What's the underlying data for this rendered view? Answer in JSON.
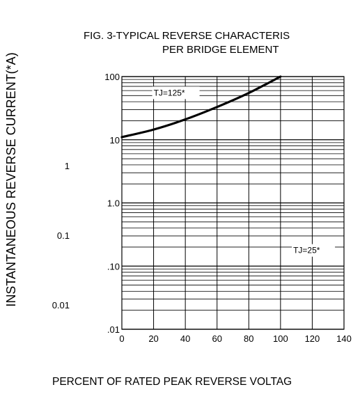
{
  "chart_data": {
    "type": "line",
    "title_lines": [
      "FIG. 3-TYPICAL REVERSE CHARACTERIS",
      "PER BRIDGE ELEMENT"
    ],
    "xlabel": "PERCENT OF RATED PEAK REVERSE VOLTAG",
    "ylabel": "INSTANTANEOUS REVERSE CURRENT(*A)",
    "x_scale": "linear",
    "y_scale": "log",
    "xlim": [
      0,
      140
    ],
    "ylim": [
      0.01,
      100
    ],
    "x_ticks": [
      "0",
      "20",
      "40",
      "60",
      "80",
      "100",
      "120",
      "140"
    ],
    "y_ticks_inner": [
      {
        "value": 100,
        "label": "100"
      },
      {
        "value": 10,
        "label": "10"
      },
      {
        "value": 1,
        "label": "1.0"
      },
      {
        "value": 0.1,
        "label": ".10"
      },
      {
        "value": 0.01,
        "label": ".01"
      }
    ],
    "y_ticks_outer": [
      {
        "value": 1,
        "label": "1"
      },
      {
        "value": 0.1,
        "label": "0.1"
      },
      {
        "value": 0.01,
        "label": "0.01"
      }
    ],
    "grid": true,
    "series": [
      {
        "name": "TJ=125*",
        "color": "#000000",
        "x": [
          0,
          20,
          40,
          60,
          80,
          100
        ],
        "y": [
          11,
          14.5,
          21,
          33,
          55,
          100
        ]
      }
    ],
    "annotations": [
      {
        "text": "TJ=25*",
        "x": 108,
        "y": 0.16
      }
    ]
  }
}
